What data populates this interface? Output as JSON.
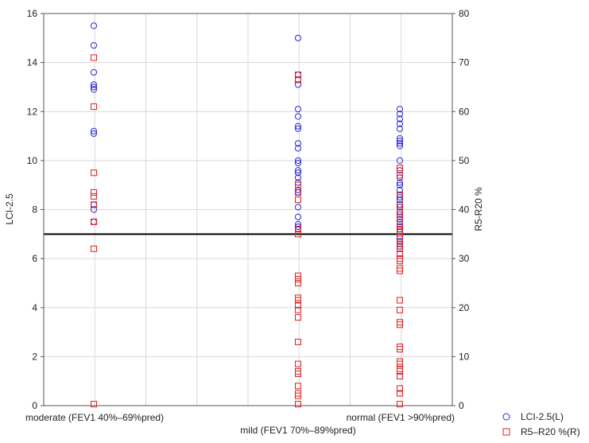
{
  "chart_data": {
    "type": "scatter",
    "categories": [
      "moderate (FEV1 40%–69%pred)",
      "mild (FEV1 70%–89%pred)",
      "normal (FEV1 >90%pred)"
    ],
    "x_category_label_rows": [
      0,
      1,
      0
    ],
    "left_axis": {
      "label": "LCI-2.5",
      "ylim": [
        0,
        16
      ],
      "ticks": [
        0,
        2,
        4,
        6,
        8,
        10,
        12,
        14,
        16
      ]
    },
    "right_axis": {
      "label": "R5-R20 %",
      "ylim": [
        0,
        80
      ],
      "ticks": [
        0,
        10,
        20,
        30,
        40,
        50,
        60,
        70,
        80
      ]
    },
    "reference_line": {
      "axis": "left",
      "value": 7.0,
      "color": "#000000"
    },
    "grid": true,
    "legend_position": "bottom-right",
    "series": [
      {
        "name": "LCI-2.5(L)",
        "axis": "left",
        "marker": "circle",
        "color": "#2b2bd8",
        "values": [
          [
            15.5,
            14.7,
            13.6,
            13.1,
            13.0,
            12.9,
            11.2,
            11.1,
            8.2,
            8.0,
            7.5
          ],
          [
            15.0,
            13.5,
            13.3,
            13.1,
            12.1,
            11.8,
            11.4,
            11.3,
            10.7,
            10.5,
            10.0,
            9.9,
            9.6,
            9.5,
            9.3,
            9.1,
            8.8,
            8.7,
            8.1,
            7.7,
            7.4,
            7.3,
            7.2
          ],
          [
            12.1,
            11.9,
            11.7,
            11.5,
            11.3,
            10.9,
            10.8,
            10.7,
            10.6,
            10.0,
            9.6,
            9.3,
            9.1,
            9.0,
            8.8,
            8.6,
            8.5,
            8.4,
            8.2,
            8.1,
            7.9,
            7.8,
            7.6,
            7.5,
            7.3,
            7.2,
            7.1,
            6.9,
            6.7,
            6.5
          ]
        ]
      },
      {
        "name": "R5–R20 %(R)",
        "axis": "right",
        "marker": "square",
        "color": "#e02020",
        "values": [
          [
            71.0,
            61.0,
            47.5,
            43.5,
            42.7,
            41.0,
            37.5,
            32.0,
            0.3
          ],
          [
            67.5,
            66.5,
            45.0,
            43.5,
            42.0,
            36.0,
            35.0,
            26.5,
            25.8,
            25.0,
            22.0,
            21.5,
            20.5,
            19.5,
            18.0,
            13.0,
            8.5,
            7.0,
            6.5,
            4.0,
            2.5,
            2.0,
            0.3
          ],
          [
            48.5,
            47.0,
            43.0,
            41.0,
            39.5,
            38.5,
            37.0,
            36.0,
            35.5,
            34.0,
            33.0,
            32.0,
            31.0,
            30.0,
            29.5,
            28.0,
            27.5,
            21.5,
            19.5,
            17.0,
            16.5,
            12.0,
            11.5,
            9.0,
            8.5,
            7.5,
            7.0,
            6.0,
            3.5,
            2.5,
            0.3
          ]
        ]
      }
    ]
  }
}
